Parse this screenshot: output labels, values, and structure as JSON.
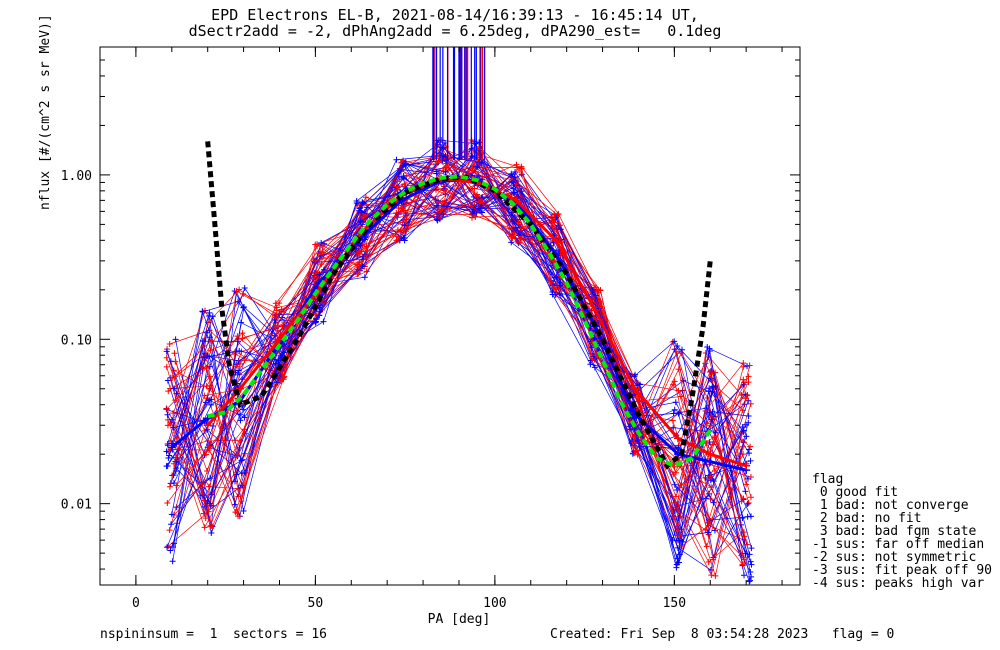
{
  "header": {
    "title_line1": "EPD Electrons EL-B, 2021-08-14/16:39:13 - 16:45:14 UT,",
    "title_line2": "dSectr2add = -2, dPhAng2add = 6.25deg, dPA290_est=   0.1deg"
  },
  "footer": {
    "left": "nspininsum =  1  sectors = 16",
    "right": "Created: Fri Sep  8 03:54:28 2023   flag = 0"
  },
  "legend": {
    "title": "flag",
    "items": [
      " 0 good fit",
      " 1 bad: not converge",
      " 2 bad: no fit",
      " 3 bad: bad fgm state",
      "-1 sus: far off median",
      "-2 sus: not symmetric",
      "-3 sus: fit peak off 90",
      "-4 sus: peaks high var"
    ]
  },
  "chart_data": {
    "type": "line",
    "xlabel": "PA [deg]",
    "ylabel": "nflux [#/(cm^2 s sr MeV)]",
    "xlim": [
      -10,
      185
    ],
    "ylim": [
      0.0032,
      6.0
    ],
    "yscale": "log",
    "x_ticks": [
      0,
      50,
      100,
      150
    ],
    "x_tick_labels": [
      "0",
      "50",
      "100",
      "150"
    ],
    "y_ticks": [
      0.01,
      0.1,
      1.0
    ],
    "y_tick_labels": [
      "0.01",
      "0.10",
      "1.00"
    ],
    "colors": {
      "red": "#ff0000",
      "blue": "#0000ff",
      "median": "#000000",
      "fit": "#00ee00"
    },
    "series": [
      {
        "x": [
          10,
          20,
          29,
          40,
          51,
          63,
          74,
          85,
          95,
          106,
          117,
          128,
          139,
          151,
          160,
          170
        ],
        "values": [
          0.022,
          0.033,
          0.042,
          0.095,
          0.22,
          0.42,
          0.7,
          0.92,
          0.93,
          0.68,
          0.33,
          0.12,
          0.035,
          0.02,
          0.018,
          0.016
        ]
      },
      {
        "x": [
          20,
          29,
          40,
          51,
          63,
          74,
          85,
          95,
          106,
          117,
          128,
          139,
          151,
          160,
          170
        ],
        "values": [
          0.03,
          0.05,
          0.1,
          0.2,
          0.45,
          0.75,
          0.95,
          0.9,
          0.7,
          0.4,
          0.15,
          0.05,
          0.025,
          0.02,
          0.017
        ]
      }
    ],
    "median": {
      "x": [
        20,
        22,
        24,
        26,
        29,
        35,
        45,
        55,
        65,
        75,
        85,
        92,
        100,
        110,
        120,
        130,
        140,
        148,
        152,
        155,
        158,
        160
      ],
      "values": [
        1.6,
        0.5,
        0.15,
        0.07,
        0.04,
        0.045,
        0.1,
        0.25,
        0.5,
        0.78,
        0.95,
        0.97,
        0.8,
        0.5,
        0.25,
        0.1,
        0.035,
        0.017,
        0.02,
        0.045,
        0.12,
        0.3
      ]
    },
    "fit": {
      "x": [
        20,
        25,
        30,
        35,
        40,
        45,
        50,
        55,
        60,
        65,
        70,
        75,
        80,
        85,
        90,
        95,
        100,
        105,
        110,
        115,
        120,
        125,
        130,
        135,
        140,
        145,
        150,
        155,
        160
      ],
      "values": [
        0.034,
        0.036,
        0.046,
        0.065,
        0.092,
        0.13,
        0.19,
        0.27,
        0.38,
        0.52,
        0.66,
        0.79,
        0.89,
        0.96,
        0.98,
        0.93,
        0.82,
        0.67,
        0.5,
        0.34,
        0.22,
        0.13,
        0.075,
        0.042,
        0.027,
        0.019,
        0.017,
        0.019,
        0.028
      ]
    }
  }
}
